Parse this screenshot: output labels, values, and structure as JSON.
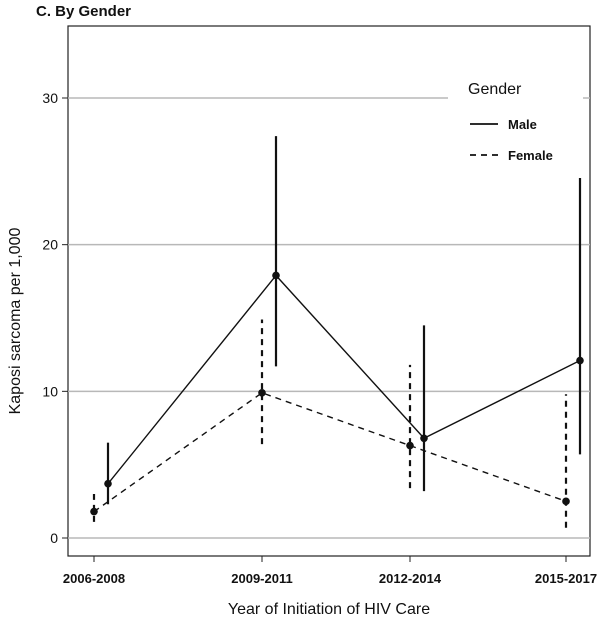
{
  "chart_data": {
    "type": "line",
    "title": "C. By Gender",
    "xlabel": "Year of Initiation of HIV Care",
    "ylabel": "Kaposi sarcoma per 1,000",
    "categories": [
      "2006-2008",
      "2009-2011",
      "2012-2014",
      "2015-2017"
    ],
    "ylim": [
      -1,
      35
    ],
    "yticks": [
      0,
      10,
      20,
      30
    ],
    "ytick_labels": [
      "0",
      "10",
      "20",
      "30"
    ],
    "grid": "horizontal",
    "legend": {
      "title": "Gender",
      "position": "top-right",
      "entries": [
        "Male",
        "Female"
      ]
    },
    "series": [
      {
        "name": "Male",
        "line_style": "solid",
        "values": [
          3.7,
          17.9,
          6.8,
          12.1
        ],
        "lower": [
          2.3,
          11.7,
          3.2,
          5.7
        ],
        "upper": [
          6.5,
          27.4,
          14.5,
          24.8
        ]
      },
      {
        "name": "Female",
        "line_style": "dashed",
        "values": [
          1.8,
          9.9,
          6.3,
          2.5
        ],
        "lower": [
          1.1,
          6.4,
          3.4,
          0.7
        ],
        "upper": [
          3.0,
          14.9,
          11.8,
          9.8
        ]
      }
    ]
  }
}
